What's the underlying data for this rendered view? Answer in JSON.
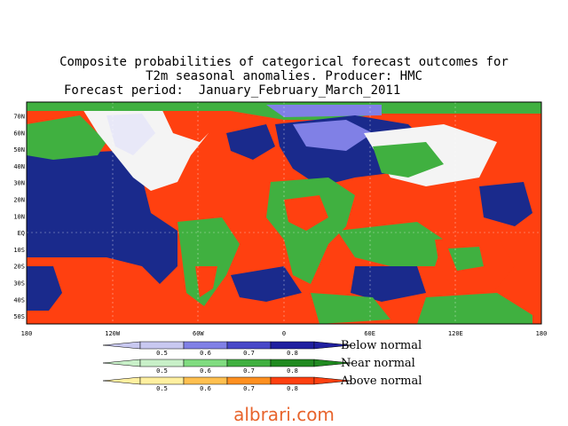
{
  "title": {
    "line1": "Composite probabilities of categorical forecast outcomes for",
    "line2": "T2m seasonal anomalies. Producer: HMC",
    "line3": "Forecast period:  January_February_March_2011"
  },
  "map": {
    "lat_labels": [
      "70N",
      "60N",
      "50N",
      "40N",
      "30N",
      "20N",
      "10N",
      "EQ",
      "10S",
      "20S",
      "30S",
      "40S",
      "50S"
    ],
    "lon_labels": [
      "180",
      "120W",
      "60W",
      "0",
      "60E",
      "120E",
      "180"
    ]
  },
  "legend": {
    "ticks": [
      "0.5",
      "0.6",
      "0.7",
      "0.8"
    ],
    "below": {
      "label": "Below normal",
      "colors": [
        "#c8c8f0",
        "#8080e6",
        "#4848c8",
        "#2020a0"
      ]
    },
    "near": {
      "label": "Near normal",
      "colors": [
        "#c8f0c8",
        "#80dc80",
        "#40b040",
        "#208a20"
      ]
    },
    "above": {
      "label": "Above normal",
      "colors": [
        "#fff0a0",
        "#ffc050",
        "#ff9020",
        "#ff4010"
      ]
    }
  },
  "colors": {
    "ocean_blue": "#1a2a8c",
    "red": "#ff4010",
    "green": "#40b040",
    "land_white": "#f4f4f4"
  },
  "watermark": "albrari.com"
}
